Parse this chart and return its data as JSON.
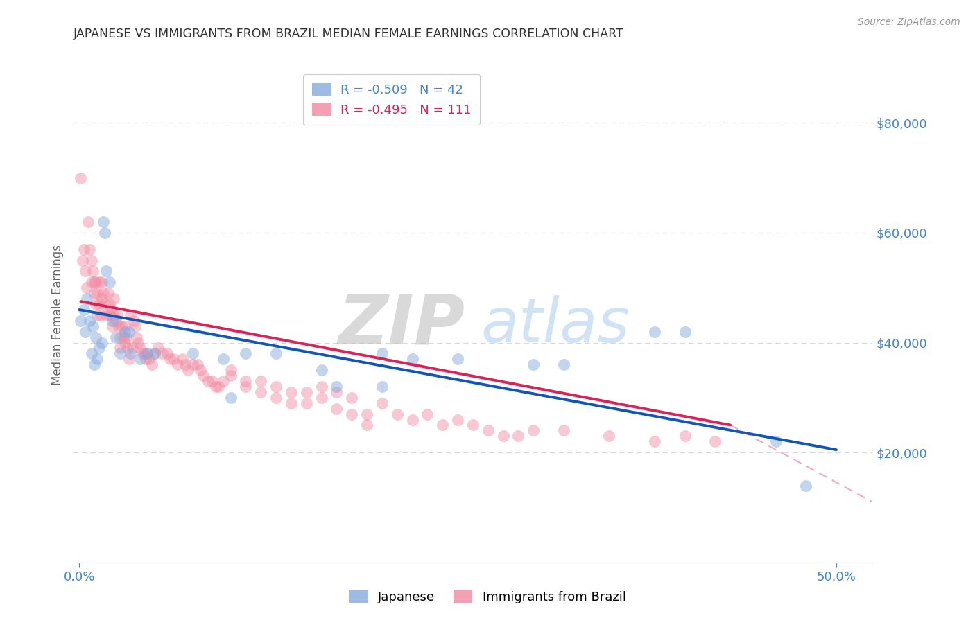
{
  "title": "JAPANESE VS IMMIGRANTS FROM BRAZIL MEDIAN FEMALE EARNINGS CORRELATION CHART",
  "source": "Source: ZipAtlas.com",
  "ylabel": "Median Female Earnings",
  "y_ticks": [
    20000,
    40000,
    60000,
    80000
  ],
  "y_tick_labels": [
    "$20,000",
    "$40,000",
    "$60,000",
    "$80,000"
  ],
  "ylim": [
    0,
    90000
  ],
  "xlim": [
    -0.004,
    0.524
  ],
  "background_color": "#ffffff",
  "grid_color": "#d8d8d8",
  "axis_color": "#4488cc",
  "title_color": "#333333",
  "source_color": "#999999",
  "zip_watermark_color": "#cccccc",
  "atlas_watermark_color": "#aaccee",
  "japanese_scatter_color": "#88aadd",
  "brazil_scatter_color": "#f088a0",
  "japanese_line_color": "#1155bb",
  "brazil_line_color": "#dd2255",
  "legend_entries": [
    {
      "label": "Japanese",
      "R": "-0.509",
      "N": "42",
      "color": "#88aadd"
    },
    {
      "label": "Immigrants from Brazil",
      "R": "-0.495",
      "N": "111",
      "color": "#f088a0"
    }
  ],
  "japanese_points": [
    [
      0.001,
      44000
    ],
    [
      0.003,
      46000
    ],
    [
      0.004,
      42000
    ],
    [
      0.005,
      48000
    ],
    [
      0.007,
      44000
    ],
    [
      0.008,
      38000
    ],
    [
      0.009,
      43000
    ],
    [
      0.01,
      36000
    ],
    [
      0.011,
      41000
    ],
    [
      0.012,
      37000
    ],
    [
      0.013,
      39000
    ],
    [
      0.015,
      40000
    ],
    [
      0.016,
      62000
    ],
    [
      0.017,
      60000
    ],
    [
      0.018,
      53000
    ],
    [
      0.02,
      51000
    ],
    [
      0.022,
      44000
    ],
    [
      0.024,
      41000
    ],
    [
      0.027,
      38000
    ],
    [
      0.03,
      42000
    ],
    [
      0.033,
      42000
    ],
    [
      0.034,
      38000
    ],
    [
      0.04,
      37000
    ],
    [
      0.045,
      38000
    ],
    [
      0.05,
      38000
    ],
    [
      0.075,
      38000
    ],
    [
      0.095,
      37000
    ],
    [
      0.11,
      38000
    ],
    [
      0.13,
      38000
    ],
    [
      0.16,
      35000
    ],
    [
      0.17,
      32000
    ],
    [
      0.2,
      38000
    ],
    [
      0.22,
      37000
    ],
    [
      0.25,
      37000
    ],
    [
      0.3,
      36000
    ],
    [
      0.32,
      36000
    ],
    [
      0.38,
      42000
    ],
    [
      0.4,
      42000
    ],
    [
      0.46,
      22000
    ],
    [
      0.48,
      14000
    ],
    [
      0.2,
      32000
    ],
    [
      0.1,
      30000
    ]
  ],
  "brazil_points": [
    [
      0.001,
      70000
    ],
    [
      0.002,
      55000
    ],
    [
      0.003,
      57000
    ],
    [
      0.004,
      53000
    ],
    [
      0.005,
      50000
    ],
    [
      0.006,
      62000
    ],
    [
      0.007,
      57000
    ],
    [
      0.008,
      55000
    ],
    [
      0.008,
      51000
    ],
    [
      0.009,
      53000
    ],
    [
      0.01,
      51000
    ],
    [
      0.01,
      49000
    ],
    [
      0.011,
      51000
    ],
    [
      0.011,
      47000
    ],
    [
      0.012,
      49000
    ],
    [
      0.012,
      45000
    ],
    [
      0.013,
      51000
    ],
    [
      0.013,
      47000
    ],
    [
      0.014,
      45000
    ],
    [
      0.015,
      51000
    ],
    [
      0.015,
      48000
    ],
    [
      0.016,
      49000
    ],
    [
      0.017,
      47000
    ],
    [
      0.018,
      45000
    ],
    [
      0.019,
      49000
    ],
    [
      0.02,
      47000
    ],
    [
      0.02,
      45000
    ],
    [
      0.021,
      46000
    ],
    [
      0.022,
      43000
    ],
    [
      0.023,
      48000
    ],
    [
      0.023,
      45000
    ],
    [
      0.024,
      44000
    ],
    [
      0.025,
      45000
    ],
    [
      0.026,
      43000
    ],
    [
      0.027,
      41000
    ],
    [
      0.027,
      39000
    ],
    [
      0.028,
      43000
    ],
    [
      0.029,
      41000
    ],
    [
      0.03,
      43000
    ],
    [
      0.03,
      40000
    ],
    [
      0.031,
      41000
    ],
    [
      0.032,
      39000
    ],
    [
      0.033,
      37000
    ],
    [
      0.034,
      45000
    ],
    [
      0.035,
      39000
    ],
    [
      0.036,
      44000
    ],
    [
      0.037,
      43000
    ],
    [
      0.038,
      41000
    ],
    [
      0.039,
      40000
    ],
    [
      0.04,
      39000
    ],
    [
      0.042,
      38000
    ],
    [
      0.043,
      38000
    ],
    [
      0.044,
      37000
    ],
    [
      0.045,
      38000
    ],
    [
      0.046,
      37000
    ],
    [
      0.048,
      36000
    ],
    [
      0.05,
      38000
    ],
    [
      0.052,
      39000
    ],
    [
      0.055,
      38000
    ],
    [
      0.058,
      38000
    ],
    [
      0.06,
      37000
    ],
    [
      0.062,
      37000
    ],
    [
      0.065,
      36000
    ],
    [
      0.068,
      37000
    ],
    [
      0.07,
      36000
    ],
    [
      0.072,
      35000
    ],
    [
      0.075,
      36000
    ],
    [
      0.078,
      36000
    ],
    [
      0.08,
      35000
    ],
    [
      0.082,
      34000
    ],
    [
      0.085,
      33000
    ],
    [
      0.088,
      33000
    ],
    [
      0.09,
      32000
    ],
    [
      0.092,
      32000
    ],
    [
      0.095,
      33000
    ],
    [
      0.1,
      35000
    ],
    [
      0.1,
      34000
    ],
    [
      0.11,
      33000
    ],
    [
      0.11,
      32000
    ],
    [
      0.12,
      33000
    ],
    [
      0.12,
      31000
    ],
    [
      0.13,
      32000
    ],
    [
      0.13,
      30000
    ],
    [
      0.14,
      31000
    ],
    [
      0.14,
      29000
    ],
    [
      0.15,
      31000
    ],
    [
      0.15,
      29000
    ],
    [
      0.16,
      32000
    ],
    [
      0.16,
      30000
    ],
    [
      0.17,
      31000
    ],
    [
      0.17,
      28000
    ],
    [
      0.18,
      30000
    ],
    [
      0.18,
      27000
    ],
    [
      0.19,
      27000
    ],
    [
      0.19,
      25000
    ],
    [
      0.2,
      29000
    ],
    [
      0.21,
      27000
    ],
    [
      0.22,
      26000
    ],
    [
      0.23,
      27000
    ],
    [
      0.24,
      25000
    ],
    [
      0.25,
      26000
    ],
    [
      0.26,
      25000
    ],
    [
      0.27,
      24000
    ],
    [
      0.28,
      23000
    ],
    [
      0.29,
      23000
    ],
    [
      0.3,
      24000
    ],
    [
      0.32,
      24000
    ],
    [
      0.35,
      23000
    ],
    [
      0.38,
      22000
    ],
    [
      0.4,
      23000
    ],
    [
      0.42,
      22000
    ]
  ],
  "japanese_line": {
    "x0": 0.0,
    "y0": 46000,
    "x1": 0.5,
    "y1": 20500
  },
  "brazil_solid_line": {
    "x0": 0.001,
    "y0": 47500,
    "x1": 0.43,
    "y1": 25000
  },
  "brazil_dashed_line": {
    "x0": 0.43,
    "y0": 25000,
    "x1": 0.524,
    "y1": 11000
  }
}
